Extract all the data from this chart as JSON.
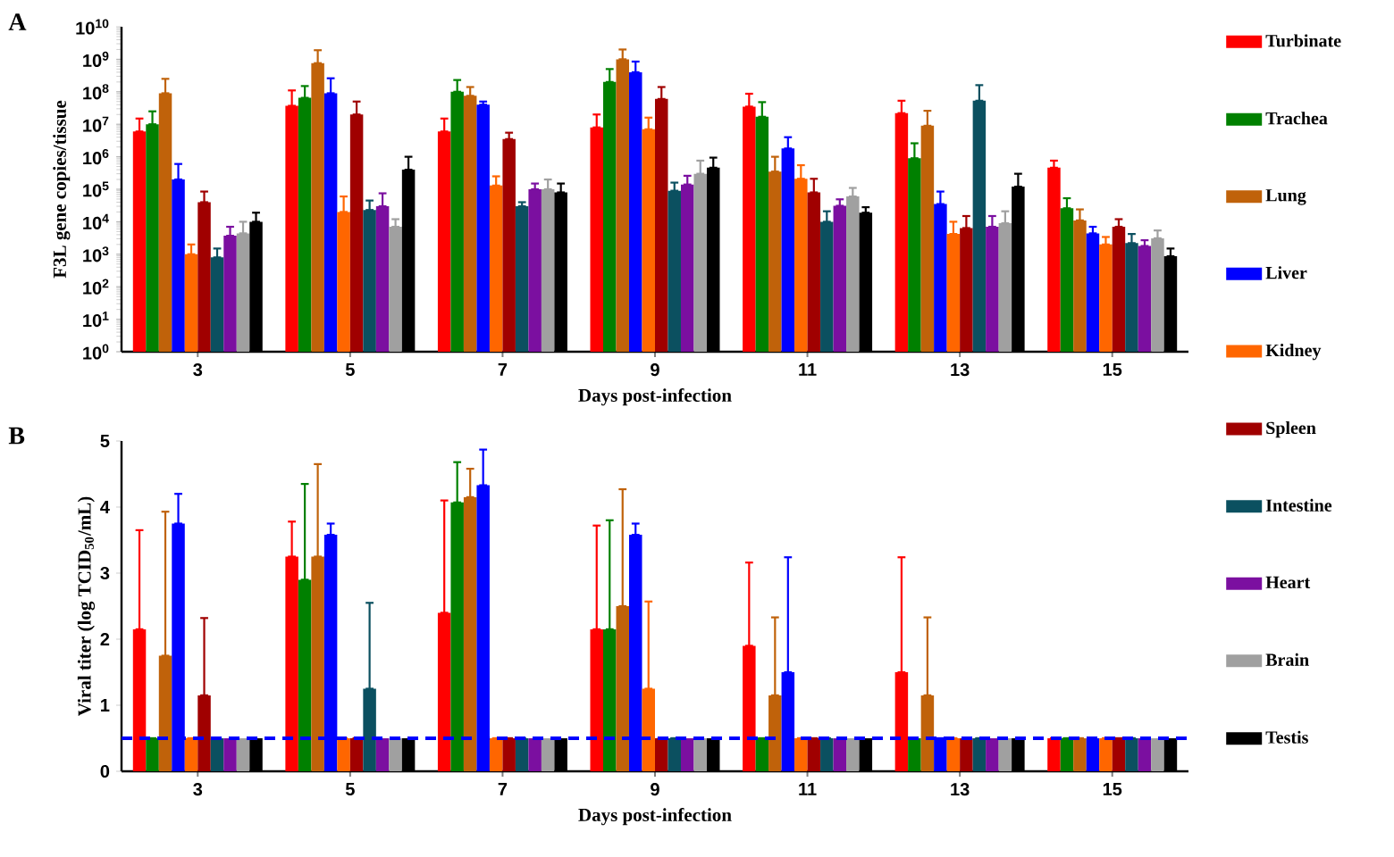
{
  "chart_data": [
    {
      "type": "bar",
      "annotations": [
        "A"
      ],
      "xlabel": "Days post-infection",
      "ylabel": "F3L gene copies/tissue",
      "categories": [
        "3",
        "5",
        "7",
        "9",
        "11",
        "13",
        "15"
      ],
      "log": "y",
      "ylim": [
        1,
        10000000000.0
      ],
      "yticks": [
        {
          "value": 1,
          "label": "10$^{0}$"
        },
        {
          "value": 10,
          "label": "10$^{1}$"
        },
        {
          "value": 100,
          "label": "10$^{2}$"
        },
        {
          "value": 1000,
          "label": "10$^{3}$"
        },
        {
          "value": 10000.0,
          "label": "10$^{4}$"
        },
        {
          "value": 100000.0,
          "label": "10$^{5}$"
        },
        {
          "value": 1000000.0,
          "label": "10$^{6}$"
        },
        {
          "value": 10000000.0,
          "label": "10$^{7}$"
        },
        {
          "value": 100000000.0,
          "label": "10$^{8}$"
        },
        {
          "value": 1000000000.0,
          "label": "10$^{9}$"
        },
        {
          "value": 10000000000.0,
          "label": "10$^{10}$"
        }
      ],
      "legend": "right",
      "series": [
        {
          "name": "Turbinate",
          "color": "#ff0000",
          "values": [
            6000000.0,
            37000000.0,
            6000000.0,
            8000000.0,
            35000000.0,
            22000000.0,
            460000.0
          ],
          "errors": [
            [
              6000000.0,
              15000000.0
            ],
            [
              37000000.0,
              110000000.0
            ],
            [
              6000000.0,
              15000000.0
            ],
            [
              8000000.0,
              20000000.0
            ],
            [
              35000000.0,
              87000000.0
            ],
            [
              22000000.0,
              53000000.0
            ],
            [
              460000.0,
              760000.0
            ]
          ]
        },
        {
          "name": "Trachea",
          "color": "#008000",
          "values": [
            10000000.0,
            65000000.0,
            100000000.0,
            200000000.0,
            17000000.0,
            900000.0,
            26000.0
          ],
          "errors": [
            [
              10000000.0,
              25000000.0
            ],
            [
              65000000.0,
              150000000.0
            ],
            [
              100000000.0,
              230000000.0
            ],
            [
              200000000.0,
              500000000.0
            ],
            [
              17000000.0,
              48000000.0
            ],
            [
              900000.0,
              2600000.0
            ],
            [
              26000.0,
              53000.0
            ]
          ]
        },
        {
          "name": "Lung",
          "color": "#c0620a",
          "values": [
            90000000.0,
            760000000.0,
            75000000.0,
            1000000000.0,
            350000.0,
            9000000.0,
            11000.0
          ],
          "errors": [
            [
              90000000.0,
              250000000.0
            ],
            [
              760000000.0,
              1900000000.0
            ],
            [
              75000000.0,
              140000000.0
            ],
            [
              1000000000.0,
              2000000000.0
            ],
            [
              350000.0,
              1000000.0
            ],
            [
              9000000.0,
              26000000.0
            ],
            [
              11000.0,
              24000.0
            ]
          ]
        },
        {
          "name": "Liver",
          "color": "#0000ff",
          "values": [
            200000.0,
            90000000.0,
            40000000.0,
            400000000.0,
            1800000.0,
            35000.0,
            4400.0
          ],
          "errors": [
            [
              200000.0,
              600000.0
            ],
            [
              90000000.0,
              260000000.0
            ],
            [
              40000000.0,
              50000000.0
            ],
            [
              400000000.0,
              850000000.0
            ],
            [
              1800000.0,
              4000000.0
            ],
            [
              35000.0,
              85000.0
            ],
            [
              4400.0,
              7000.0
            ]
          ]
        },
        {
          "name": "Kidney",
          "color": "#ff6600",
          "values": [
            1000.0,
            20000.0,
            130000.0,
            7000000.0,
            210000.0,
            4200.0,
            2000.0
          ],
          "errors": [
            [
              1000.0,
              2000.0
            ],
            [
              20000.0,
              60000.0
            ],
            [
              130000.0,
              250000.0
            ],
            [
              7000000.0,
              16000000.0
            ],
            [
              210000.0,
              550000.0
            ],
            [
              4200.0,
              10000.0
            ],
            [
              2000.0,
              3400.0
            ]
          ]
        },
        {
          "name": "Spleen",
          "color": "#a00000",
          "values": [
            40000.0,
            20000000.0,
            3500000.0,
            60000000.0,
            80000.0,
            6400.0,
            7000.0
          ],
          "errors": [
            [
              40000.0,
              85000.0
            ],
            [
              20000000.0,
              50000000.0
            ],
            [
              3500000.0,
              5500000.0
            ],
            [
              60000000.0,
              140000000.0
            ],
            [
              80000.0,
              210000.0
            ],
            [
              6400.0,
              15000.0
            ],
            [
              7000.0,
              12000.0
            ]
          ]
        },
        {
          "name": "Intestine",
          "color": "#0b5060",
          "values": [
            800,
            23000.0,
            30000.0,
            90000.0,
            10000.0,
            53000000.0,
            2200.0
          ],
          "errors": [
            [
              800,
              1500.0
            ],
            [
              23000.0,
              45000.0
            ],
            [
              30000.0,
              40000.0
            ],
            [
              90000.0,
              160000.0
            ],
            [
              10000.0,
              21000.0
            ],
            [
              53000000.0,
              160000000.0
            ],
            [
              2200.0,
              4200.0
            ]
          ]
        },
        {
          "name": "Heart",
          "color": "#7b0fa0",
          "values": [
            3700.0,
            30000.0,
            100000.0,
            140000.0,
            31000.0,
            7000.0,
            1800.0
          ],
          "errors": [
            [
              3700.0,
              7000.0
            ],
            [
              30000.0,
              75000.0
            ],
            [
              100000.0,
              150000.0
            ],
            [
              140000.0,
              260000.0
            ],
            [
              31000.0,
              49000.0
            ],
            [
              7000.0,
              15000.0
            ],
            [
              1800.0,
              2700.0
            ]
          ]
        },
        {
          "name": "Brain",
          "color": "#a0a0a0",
          "values": [
            4400.0,
            7000.0,
            100000.0,
            300000.0,
            60000.0,
            9000.0,
            3100.0
          ],
          "errors": [
            [
              4400.0,
              10000.0
            ],
            [
              7000.0,
              12000.0
            ],
            [
              100000.0,
              200000.0
            ],
            [
              300000.0,
              760000.0
            ],
            [
              60000.0,
              110000.0
            ],
            [
              9000.0,
              21000.0
            ],
            [
              3100.0,
              5400.0
            ]
          ]
        },
        {
          "name": "Testis",
          "color": "#000000",
          "values": [
            10000.0,
            400000.0,
            80000.0,
            460000.0,
            19000.0,
            120000.0,
            870
          ],
          "errors": [
            [
              10000.0,
              19000.0
            ],
            [
              400000.0,
              1000000.0
            ],
            [
              80000.0,
              150000.0
            ],
            [
              460000.0,
              940000.0
            ],
            [
              19000.0,
              28000.0
            ],
            [
              120000.0,
              300000.0
            ],
            [
              870,
              1500.0
            ]
          ]
        }
      ]
    },
    {
      "type": "bar",
      "annotations": [
        "B"
      ],
      "xlabel": "Days post-infection",
      "ylabel": "Viral titer (log TCID$_{50}$/mL)",
      "categories": [
        "3",
        "5",
        "7",
        "9",
        "11",
        "13",
        "15"
      ],
      "ylim": [
        0,
        5
      ],
      "yticks": [
        0,
        1,
        2,
        3,
        4,
        5
      ],
      "ref_lines": [
        {
          "axis": "y",
          "value": 0.5,
          "color": "#0000ff",
          "line_style": "dashed"
        }
      ],
      "series": [
        {
          "color": "#ff0000",
          "values": [
            2.15,
            3.25,
            2.4,
            2.15,
            1.9,
            1.5,
            0.5
          ],
          "errors": [
            [
              2.15,
              3.65
            ],
            [
              3.25,
              3.78
            ],
            [
              2.4,
              4.1
            ],
            [
              2.15,
              3.72
            ],
            [
              1.9,
              3.16
            ],
            [
              1.5,
              3.24
            ],
            null
          ]
        },
        {
          "color": "#008000",
          "values": [
            0.5,
            2.9,
            4.07,
            2.15,
            0.5,
            0.5,
            0.5
          ],
          "errors": [
            null,
            [
              2.9,
              4.35
            ],
            [
              4.07,
              4.68
            ],
            [
              2.15,
              3.8
            ],
            null,
            null,
            null
          ]
        },
        {
          "color": "#c0620a",
          "values": [
            1.75,
            3.25,
            4.15,
            2.5,
            1.15,
            1.15,
            0.5
          ],
          "errors": [
            [
              1.75,
              3.93
            ],
            [
              3.25,
              4.65
            ],
            [
              4.15,
              4.58
            ],
            [
              2.5,
              4.27
            ],
            [
              1.15,
              2.33
            ],
            [
              1.15,
              2.33
            ],
            null
          ]
        },
        {
          "color": "#0000ff",
          "values": [
            3.75,
            3.58,
            4.33,
            3.58,
            1.5,
            0.5,
            0.5
          ],
          "errors": [
            [
              3.75,
              4.2
            ],
            [
              3.58,
              3.75
            ],
            [
              4.33,
              4.87
            ],
            [
              3.58,
              3.75
            ],
            [
              1.5,
              3.24
            ],
            null,
            null
          ]
        },
        {
          "color": "#ff6600",
          "values": [
            0.5,
            0.5,
            0.5,
            1.25,
            0.5,
            0.5,
            0.5
          ],
          "errors": [
            null,
            null,
            null,
            [
              1.25,
              2.57
            ],
            null,
            null,
            null
          ]
        },
        {
          "color": "#a00000",
          "values": [
            1.15,
            0.5,
            0.5,
            0.5,
            0.5,
            0.5,
            0.5
          ],
          "errors": [
            [
              1.15,
              2.32
            ],
            null,
            null,
            null,
            null,
            null,
            null
          ]
        },
        {
          "color": "#0b5060",
          "values": [
            0.5,
            1.25,
            0.5,
            0.5,
            0.5,
            0.5,
            0.5
          ],
          "errors": [
            null,
            [
              1.25,
              2.55
            ],
            null,
            null,
            null,
            null,
            null
          ]
        },
        {
          "color": "#7b0fa0",
          "values": [
            0.5,
            0.5,
            0.5,
            0.5,
            0.5,
            0.5,
            0.5
          ]
        },
        {
          "color": "#a0a0a0",
          "values": [
            0.5,
            0.5,
            0.5,
            0.5,
            0.5,
            0.5,
            0.5
          ]
        },
        {
          "color": "#000000",
          "values": [
            0.5,
            0.5,
            0.5,
            0.5,
            0.5,
            0.5,
            0.5
          ]
        }
      ]
    }
  ]
}
